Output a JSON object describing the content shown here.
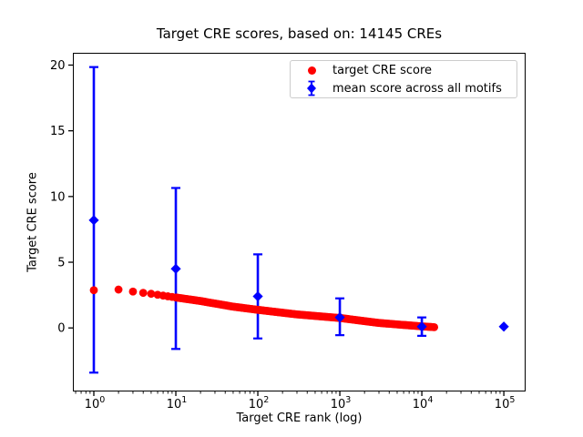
{
  "figure": {
    "background": "#ffffff"
  },
  "chart_data": {
    "type": "scatter",
    "title": "Target CRE scores, based on: 14145 CREs",
    "total_cres_in_title": 14145,
    "x_axis": {
      "label": "Target CRE rank (log)",
      "scale": "log",
      "lim_log10": [
        -0.25,
        5.26
      ],
      "major_tick_exponents": [
        0,
        1,
        2,
        3,
        4,
        5
      ],
      "tick_label_base": "10"
    },
    "y_axis": {
      "label": "Target CRE score",
      "lim": [
        -4.8,
        20.9
      ],
      "ticks": [
        0,
        5,
        10,
        15,
        20
      ]
    },
    "legend": {
      "position": "upper right",
      "items": [
        "target CRE score",
        "mean score across all motifs"
      ]
    },
    "series": [
      {
        "name": "target CRE score",
        "marker": "circle",
        "color": "#ff0000",
        "point_count": 14145,
        "rank_range": [
          1,
          14145
        ],
        "anchors": {
          "rank": [
            1,
            2,
            3,
            4,
            5,
            7,
            10,
            20,
            50,
            100,
            300,
            1000,
            3000,
            10000,
            14145
          ],
          "score": [
            2.87,
            2.92,
            2.77,
            2.67,
            2.6,
            2.46,
            2.32,
            2.05,
            1.62,
            1.38,
            1.03,
            0.76,
            0.38,
            0.12,
            0.06
          ]
        }
      },
      {
        "name": "mean score across all motifs",
        "marker": "diamond",
        "color": "#0000ff",
        "error_bars": true,
        "points": [
          {
            "rank": 1,
            "mean": 8.2,
            "lo": -3.4,
            "hi": 19.85
          },
          {
            "rank": 10,
            "mean": 4.5,
            "lo": -1.6,
            "hi": 10.65
          },
          {
            "rank": 100,
            "mean": 2.4,
            "lo": -0.8,
            "hi": 5.6
          },
          {
            "rank": 1000,
            "mean": 0.8,
            "lo": -0.55,
            "hi": 2.25
          },
          {
            "rank": 10000,
            "mean": 0.1,
            "lo": -0.6,
            "hi": 0.8
          },
          {
            "rank": 100000,
            "mean": 0.1,
            "lo": 0.1,
            "hi": 0.1
          }
        ]
      }
    ],
    "colors": {
      "red": "#ff0000",
      "blue": "#0000ff",
      "axis": "#000000",
      "legend_border": "#cccccc"
    }
  }
}
